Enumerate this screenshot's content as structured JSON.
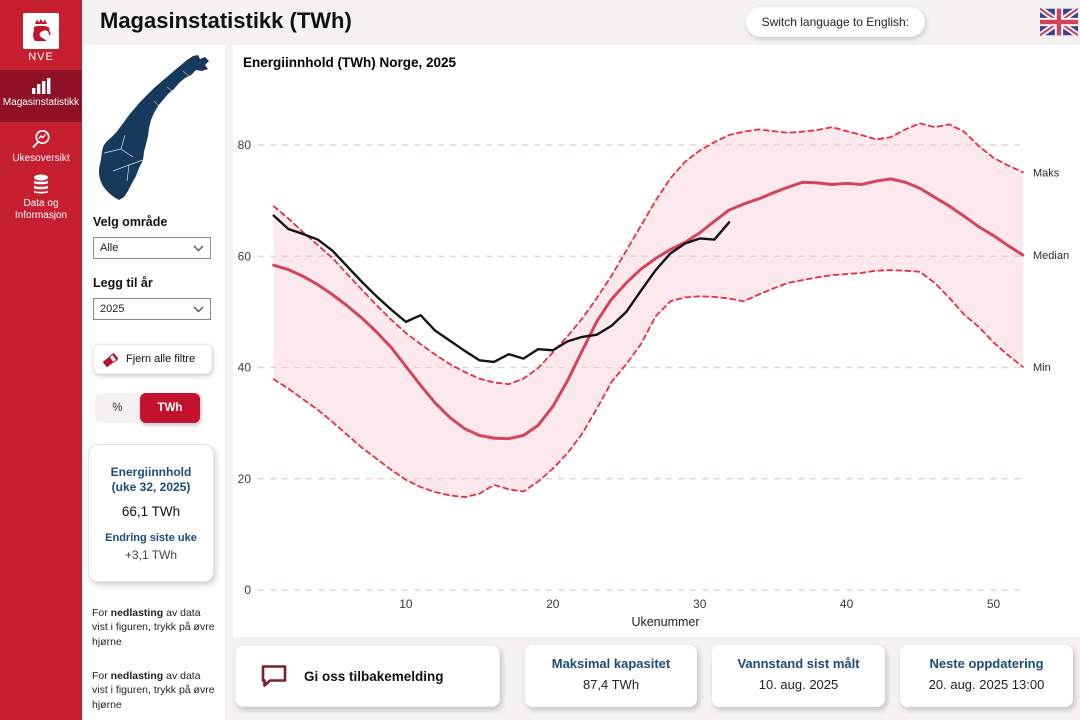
{
  "header": {
    "title": "Magasinstatistikk (TWh)",
    "language_button": "Switch language to English:"
  },
  "sidebar": {
    "logo_text": "NVE",
    "items": [
      {
        "label": "Magasinstatistikk",
        "active": true
      },
      {
        "label": "Ukesoversikt",
        "active": false
      },
      {
        "label": "Data og Informasjon",
        "active": false
      }
    ]
  },
  "filters": {
    "area_label": "Velg område",
    "area_value": "Alle",
    "year_label": "Legg til år",
    "year_value": "2025",
    "clear_button": "Fjern alle filtre",
    "unit_percent": "%",
    "unit_twh": "TWh",
    "unit_selected": "TWh"
  },
  "summary_card": {
    "title_line1": "Energiinnhold",
    "title_line2": "(uke 32, 2025)",
    "value": "66,1 TWh",
    "change_label": "Endring siste uke",
    "change_value": "+3,1 TWh"
  },
  "download_note": {
    "part1": "For ",
    "part2": "nedlasting",
    "part3": " av data vist i figuren, trykk på øvre hjørne"
  },
  "chart": {
    "title": "Energiinnhold (TWh) Norge, 2025"
  },
  "chart_data": {
    "type": "line",
    "title": "Energiinnhold (TWh) Norge, 2025",
    "xlabel": "Ukenummer",
    "ylabel": "",
    "xlim": [
      1,
      52
    ],
    "ylim": [
      0,
      88
    ],
    "x_ticks": [
      10,
      20,
      30,
      40,
      50
    ],
    "y_ticks": [
      0,
      20,
      40,
      60,
      80
    ],
    "grid": true,
    "band_between": [
      "Maks",
      "Min"
    ],
    "annotations": [
      "Maks",
      "Median",
      "Min"
    ],
    "series": [
      {
        "name": "Maks",
        "style": "dashed",
        "color": "#EE2B47",
        "values": [
          69.0,
          66.8,
          64.3,
          62.0,
          59.7,
          56.8,
          54.0,
          51.2,
          48.6,
          46.2,
          44.2,
          42.3,
          40.6,
          39.2,
          38.0,
          37.3,
          37.0,
          38.0,
          39.9,
          42.7,
          45.6,
          48.8,
          52.5,
          56.5,
          61.0,
          65.5,
          70.0,
          74.0,
          77.0,
          79.0,
          80.5,
          81.8,
          82.4,
          82.8,
          82.5,
          82.2,
          82.4,
          82.7,
          83.2,
          82.5,
          81.8,
          81.0,
          81.4,
          82.8,
          83.9,
          83.2,
          83.7,
          82.4,
          79.8,
          77.7,
          76.3,
          75.1
        ]
      },
      {
        "name": "Median",
        "style": "solid",
        "color": "#D4455C",
        "values": [
          58.4,
          57.6,
          56.4,
          54.9,
          53.1,
          51.1,
          48.9,
          46.4,
          43.6,
          40.2,
          36.8,
          33.6,
          31.0,
          29.0,
          27.8,
          27.3,
          27.2,
          27.8,
          29.6,
          33.0,
          37.6,
          43.0,
          48.3,
          52.3,
          55.2,
          57.7,
          59.6,
          61.2,
          62.5,
          64.2,
          66.3,
          68.3,
          69.4,
          70.3,
          71.4,
          72.4,
          73.3,
          73.2,
          72.9,
          73.1,
          72.9,
          73.5,
          73.9,
          73.3,
          72.2,
          70.6,
          69.0,
          67.2,
          65.3,
          63.7,
          61.9,
          60.2
        ]
      },
      {
        "name": "Min",
        "style": "dashed",
        "color": "#EE2B47",
        "values": [
          37.9,
          36.2,
          34.3,
          32.4,
          30.2,
          27.9,
          25.6,
          23.6,
          21.6,
          19.8,
          18.5,
          17.6,
          17.0,
          16.7,
          17.3,
          18.9,
          18.1,
          17.7,
          19.5,
          21.8,
          24.6,
          28.1,
          32.6,
          37.4,
          40.6,
          44.2,
          49.2,
          51.9,
          52.6,
          52.8,
          52.7,
          52.4,
          51.9,
          53.1,
          54.2,
          55.2,
          55.7,
          56.2,
          56.6,
          56.8,
          57.0,
          57.4,
          57.5,
          57.4,
          57.2,
          55.2,
          52.5,
          49.5,
          47.3,
          44.5,
          42.2,
          40.1
        ]
      },
      {
        "name": "2025",
        "style": "solid",
        "color": "#141414",
        "values": [
          67.3,
          64.9,
          64.0,
          63.0,
          61.0,
          58.2,
          55.4,
          52.8,
          50.4,
          48.2,
          49.4,
          46.6,
          44.8,
          43.0,
          41.3,
          41.0,
          42.4,
          41.6,
          43.3,
          43.1,
          44.7,
          45.5,
          45.9,
          47.5,
          50.0,
          53.8,
          57.5,
          60.5,
          62.3,
          63.2,
          63.0,
          66.1
        ]
      }
    ]
  },
  "footer": {
    "feedback_button": "Gi oss tilbakemelding",
    "cards": [
      {
        "title": "Maksimal kapasitet",
        "value": "87,4 TWh"
      },
      {
        "title": "Vannstand sist målt",
        "value": "10. aug. 2025"
      },
      {
        "title": "Neste oppdatering",
        "value": "20. aug. 2025 13:00"
      }
    ]
  },
  "colors": {
    "sidebar_red": "#C51F30",
    "sidebar_active": "#8E1126",
    "accent_red": "#C4112E",
    "dashed_red": "#EE2B47",
    "median_red": "#D4455C",
    "band_pink": "#FCE9ED",
    "grid_pink": "#E6CBD0",
    "dark_blue": "#1B4B7F",
    "map_navy": "#16395C",
    "background": "#F3F2F1"
  }
}
